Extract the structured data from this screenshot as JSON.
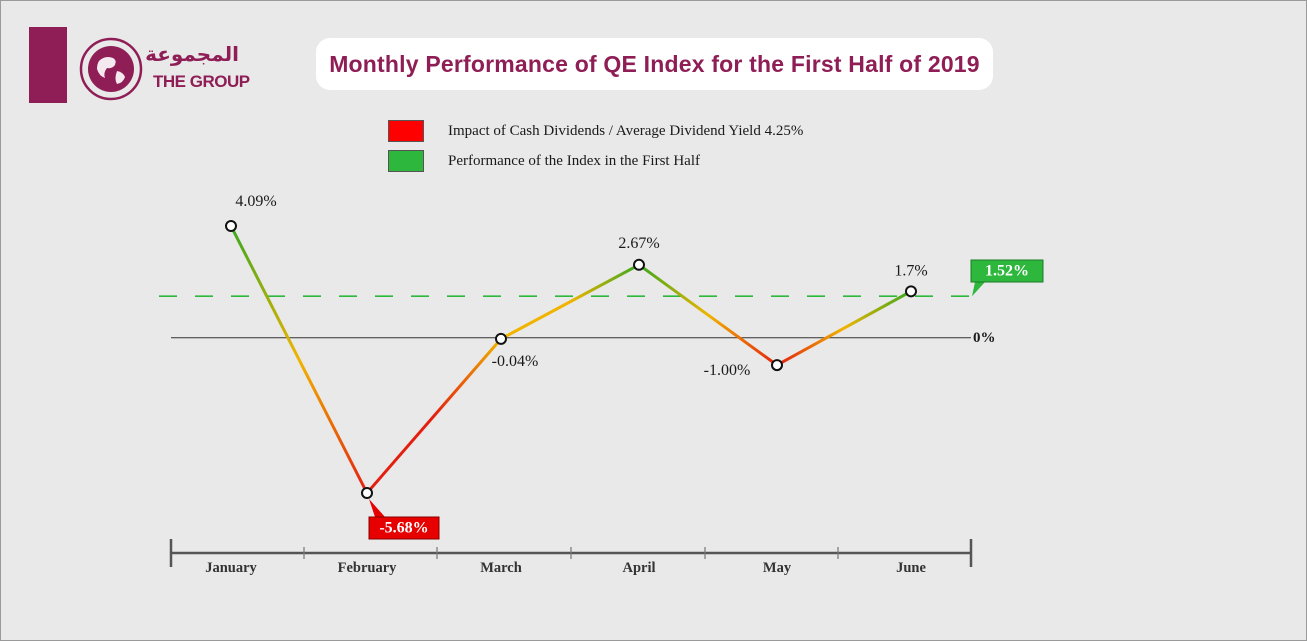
{
  "brand": {
    "name_ar": "المجموعة",
    "name_en": "THE GROUP",
    "color": "#8e1e55"
  },
  "chart_data": {
    "type": "line",
    "title": "Monthly Performance of QE Index for the First Half of 2019",
    "categories": [
      "January",
      "February",
      "March",
      "April",
      "May",
      "June"
    ],
    "series": [
      {
        "values": [
          4.09,
          -5.68,
          -0.04,
          2.67,
          -1.0,
          1.7
        ]
      }
    ],
    "point_labels": [
      "4.09%",
      "-5.68%",
      "-0.04%",
      "2.67%",
      "-1.00%",
      "1.7%"
    ],
    "highlight": {
      "min_index": 1,
      "min_color": "#e60000",
      "max_color": "#2db83d"
    },
    "reference_lines": [
      {
        "value": 0,
        "label": "0%",
        "style": "solid",
        "color": "#333333"
      },
      {
        "value": 1.52,
        "label": "1.52%",
        "style": "dashed",
        "color": "#2db83d"
      }
    ],
    "legend": [
      {
        "label": "Impact of Cash Dividends / Average Dividend Yield 4.25%",
        "color": "#ff0000"
      },
      {
        "label": "Performance of the Index in the First Half",
        "color": "#2db83d"
      }
    ],
    "colors": {
      "positive": "#3aa81f",
      "neutral": "#f0b400",
      "negative": "#e32010"
    },
    "ylim": [
      -5.68,
      4.09
    ],
    "grid": false,
    "legend_position": "top-center"
  }
}
